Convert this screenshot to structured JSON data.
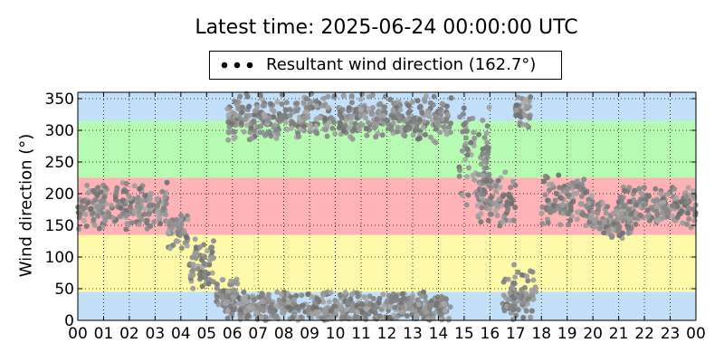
{
  "chart_data": {
    "type": "scatter",
    "title": "Latest time: 2025-06-24 00:00:00 UTC",
    "xlabel": "",
    "ylabel": "Wind direction (°)",
    "xlim": [
      0,
      24
    ],
    "ylim": [
      0,
      360
    ],
    "x_ticks": [
      "00",
      "01",
      "02",
      "03",
      "04",
      "05",
      "06",
      "07",
      "08",
      "09",
      "10",
      "11",
      "12",
      "13",
      "14",
      "15",
      "16",
      "17",
      "18",
      "19",
      "20",
      "21",
      "22",
      "23",
      "00"
    ],
    "y_ticks": [
      0,
      50,
      100,
      150,
      200,
      250,
      300,
      350
    ],
    "grid": true,
    "legend_placement": "top-center",
    "bands": [
      {
        "from": 0,
        "to": 45,
        "color": "#c2e0fa"
      },
      {
        "from": 45,
        "to": 135,
        "color": "#fffaaa"
      },
      {
        "from": 135,
        "to": 225,
        "color": "#ffb3b6"
      },
      {
        "from": 225,
        "to": 315,
        "color": "#b7fbb3"
      },
      {
        "from": 315,
        "to": 360,
        "color": "#c2e0fa"
      }
    ],
    "series": [
      {
        "name": "Resultant wind direction (162.7°)",
        "marker_color": "#8c8c8c",
        "segments": [
          {
            "x0": 0.0,
            "x1": 3.5,
            "center": 180,
            "spread": 30
          },
          {
            "x0": 3.5,
            "x1": 4.3,
            "center": 140,
            "spread": 25
          },
          {
            "x0": 4.3,
            "x1": 5.3,
            "center": 90,
            "spread": 30
          },
          {
            "x0": 5.3,
            "x1": 6.2,
            "center": 40,
            "spread": 25
          },
          {
            "x0": 5.8,
            "x1": 14.5,
            "center": 20,
            "spread": 20
          },
          {
            "x0": 5.8,
            "x1": 14.5,
            "center": 320,
            "spread": 30
          },
          {
            "x0": 14.8,
            "x1": 16.0,
            "center": 260,
            "spread": 60
          },
          {
            "x0": 15.5,
            "x1": 17.0,
            "center": 190,
            "spread": 35
          },
          {
            "x0": 16.5,
            "x1": 17.8,
            "center": 40,
            "spread": 35
          },
          {
            "x0": 17.0,
            "x1": 17.6,
            "center": 330,
            "spread": 20
          },
          {
            "x0": 18.0,
            "x1": 20.0,
            "center": 190,
            "spread": 30
          },
          {
            "x0": 19.8,
            "x1": 21.5,
            "center": 155,
            "spread": 25
          },
          {
            "x0": 21.0,
            "x1": 24.0,
            "center": 180,
            "spread": 25
          }
        ]
      }
    ]
  },
  "legend": {
    "label": "Resultant wind direction (162.7°)"
  }
}
